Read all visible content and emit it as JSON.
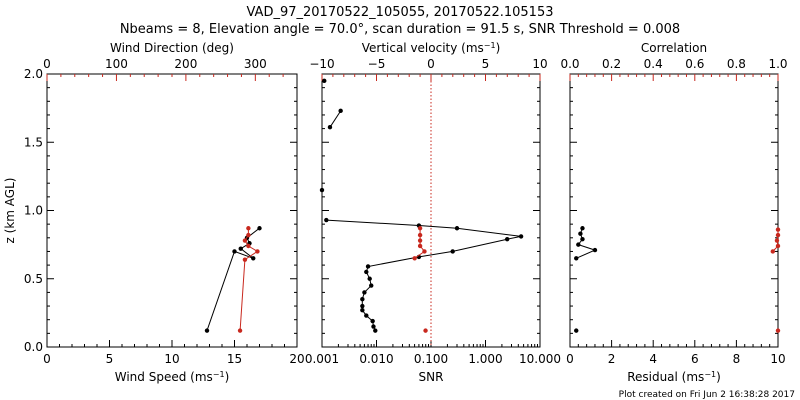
{
  "header": {
    "title": "VAD_97_20170522_105055, 20170522.105153",
    "subtitle": "Nbeams = 8, Elevation angle = 70.0°, scan duration = 91.5 s, SNR Threshold = 0.008"
  },
  "footer": {
    "note": "Plot created on Fri Jun  2 16:38:28 2017"
  },
  "colors": {
    "primary": "#000000",
    "secondary": "#c8281e"
  },
  "chart_data": [
    {
      "type": "line",
      "panel": "left",
      "ylabel": "z (km AGL)",
      "ylim": [
        0,
        2
      ],
      "ytick_labels": [
        "0.0",
        "0.5",
        "1.0",
        "1.5",
        "2.0"
      ],
      "xlabel": "Wind Speed (ms",
      "xlabel_sup": "−1",
      "xlabel_end": ")",
      "xlim": [
        0,
        20
      ],
      "xtick_labels": [
        "0",
        "5",
        "10",
        "15",
        "20"
      ],
      "top_xlabel": "Wind Direction (deg)",
      "top_xlim": [
        0,
        360
      ],
      "top_xtick_labels": [
        "0",
        "100",
        "200",
        "300"
      ],
      "series": [
        {
          "axis": "bottom",
          "color": "black",
          "y": [
            0.12,
            0.7,
            0.65,
            0.72,
            0.76,
            0.8,
            0.87
          ],
          "x": [
            12.8,
            15.0,
            16.5,
            15.5,
            16.2,
            16.0,
            17.0
          ]
        },
        {
          "axis": "top",
          "color": "red",
          "y": [
            0.12,
            0.64,
            0.7,
            0.74,
            0.78,
            0.82,
            0.87
          ],
          "x": [
            278,
            285,
            303,
            290,
            285,
            290,
            290
          ]
        }
      ]
    },
    {
      "type": "line",
      "panel": "middle",
      "xlabel": "SNR",
      "xlog": true,
      "xlim": [
        0.001,
        10
      ],
      "xtick_labels": [
        "0.001",
        "0.010",
        "0.100",
        "1.000",
        "10.000"
      ],
      "top_xlabel": "Vertical velocity (ms",
      "top_xlabel_sup": "−1",
      "top_xlabel_end": ")",
      "top_xlim": [
        -10,
        10
      ],
      "top_xtick_labels": [
        "−10",
        "−5",
        "0",
        "5",
        "10"
      ],
      "zero_line": 0,
      "series": [
        {
          "axis": "bottom",
          "color": "black",
          "lines": true,
          "y": [
            0.12,
            0.15,
            0.19,
            0.23,
            0.27,
            0.3,
            0.35,
            0.4,
            0.45,
            0.5,
            0.55,
            0.59,
            0.66,
            0.7,
            0.79,
            0.81,
            0.87,
            0.89,
            0.93
          ],
          "x": [
            0.0095,
            0.0088,
            0.0085,
            0.0065,
            0.0055,
            0.0055,
            0.0055,
            0.006,
            0.008,
            0.0075,
            0.0065,
            0.007,
            0.06,
            0.25,
            2.5,
            4.5,
            0.3,
            0.06,
            0.0012
          ]
        },
        {
          "axis": "bottom",
          "color": "black",
          "lines": true,
          "y": [
            1.61,
            1.73
          ],
          "x": [
            0.0014,
            0.0022
          ]
        },
        {
          "axis": "bottom",
          "color": "black",
          "lines": false,
          "y": [
            1.15,
            1.95
          ],
          "x": [
            0.001,
            0.0011
          ]
        },
        {
          "axis": "top",
          "color": "red",
          "lines": true,
          "y": [
            0.65,
            0.7,
            0.74,
            0.78,
            0.82,
            0.87
          ],
          "x": [
            -1.5,
            -0.6,
            -1.0,
            -1.0,
            -1.0,
            -1.0
          ]
        },
        {
          "axis": "top",
          "color": "red",
          "lines": false,
          "y": [
            0.12
          ],
          "x": [
            -0.5
          ]
        }
      ]
    },
    {
      "type": "line",
      "panel": "right",
      "xlabel": "Residual (ms",
      "xlabel_sup": "−1",
      "xlabel_end": ")",
      "xlim": [
        0,
        10
      ],
      "xtick_labels": [
        "0",
        "2",
        "4",
        "6",
        "8",
        "10"
      ],
      "top_xlabel": "Correlation",
      "top_xlim": [
        0,
        1
      ],
      "top_xtick_labels": [
        "0.0",
        "0.2",
        "0.4",
        "0.6",
        "0.8",
        "1.0"
      ],
      "series": [
        {
          "axis": "bottom",
          "color": "black",
          "lines": true,
          "y": [
            0.65,
            0.71,
            0.75,
            0.79,
            0.83,
            0.87
          ],
          "x": [
            0.3,
            1.2,
            0.4,
            0.6,
            0.5,
            0.6
          ]
        },
        {
          "axis": "bottom",
          "color": "black",
          "lines": false,
          "y": [
            0.12
          ],
          "x": [
            0.3
          ]
        },
        {
          "axis": "top",
          "color": "red",
          "lines": true,
          "y": [
            0.7,
            0.74,
            0.78,
            0.82,
            0.86
          ],
          "x": [
            0.975,
            1.0,
            0.995,
            1.0,
            1.0
          ]
        },
        {
          "axis": "top",
          "color": "red",
          "lines": false,
          "y": [
            0.12
          ],
          "x": [
            1.0
          ]
        }
      ]
    }
  ]
}
